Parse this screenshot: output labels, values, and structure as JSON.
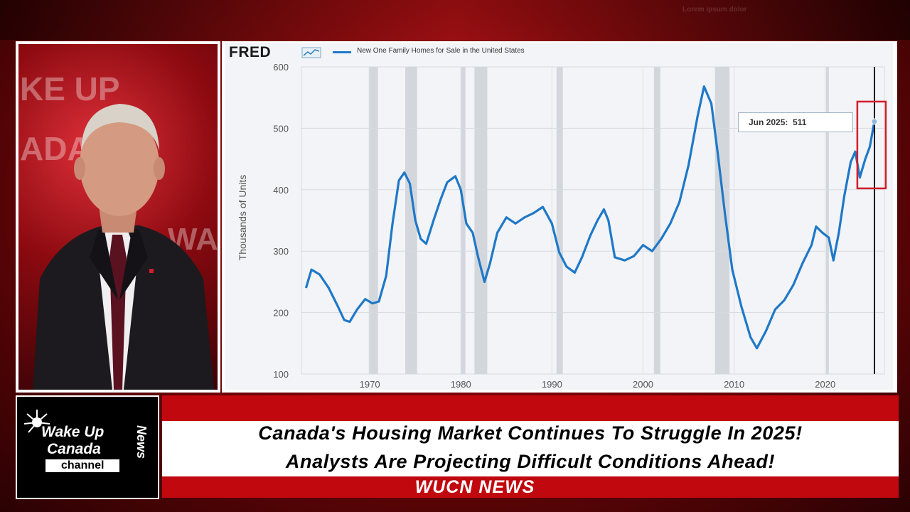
{
  "background": {
    "overlay_text": "Lorem ipsum dolor"
  },
  "presenter": {
    "watermark_lines": [
      "KE UP",
      "ADA",
      "WAK"
    ]
  },
  "chart": {
    "logo": "FRED",
    "legend_label": "New One Family Homes for Sale in the United States",
    "tooltip": "Jun 2025:  511"
  },
  "chart_data": {
    "type": "line",
    "title": "",
    "series": [
      {
        "name": "New One Family Homes for Sale in the United States",
        "color": "#1f78c8",
        "points": [
          [
            1963.0,
            240
          ],
          [
            1963.6,
            270
          ],
          [
            1964.5,
            262
          ],
          [
            1965.5,
            240
          ],
          [
            1966.5,
            210
          ],
          [
            1967.2,
            188
          ],
          [
            1967.8,
            185
          ],
          [
            1968.6,
            205
          ],
          [
            1969.5,
            222
          ],
          [
            1970.3,
            215
          ],
          [
            1971.0,
            218
          ],
          [
            1971.8,
            260
          ],
          [
            1972.5,
            345
          ],
          [
            1973.2,
            415
          ],
          [
            1973.8,
            428
          ],
          [
            1974.4,
            410
          ],
          [
            1975.0,
            350
          ],
          [
            1975.6,
            320
          ],
          [
            1976.2,
            312
          ],
          [
            1977.0,
            350
          ],
          [
            1977.8,
            385
          ],
          [
            1978.5,
            412
          ],
          [
            1979.4,
            422
          ],
          [
            1980.0,
            400
          ],
          [
            1980.6,
            345
          ],
          [
            1981.3,
            330
          ],
          [
            1981.9,
            290
          ],
          [
            1982.6,
            250
          ],
          [
            1983.2,
            280
          ],
          [
            1984.0,
            330
          ],
          [
            1985.0,
            355
          ],
          [
            1986.0,
            345
          ],
          [
            1987.0,
            355
          ],
          [
            1988.0,
            362
          ],
          [
            1989.0,
            372
          ],
          [
            1990.0,
            345
          ],
          [
            1990.8,
            298
          ],
          [
            1991.6,
            275
          ],
          [
            1992.5,
            265
          ],
          [
            1993.3,
            290
          ],
          [
            1994.2,
            325
          ],
          [
            1995.0,
            350
          ],
          [
            1995.7,
            368
          ],
          [
            1996.2,
            350
          ],
          [
            1996.9,
            290
          ],
          [
            1998.0,
            285
          ],
          [
            1999.0,
            292
          ],
          [
            2000.0,
            310
          ],
          [
            2001.0,
            300
          ],
          [
            2002.0,
            320
          ],
          [
            2003.0,
            345
          ],
          [
            2004.0,
            380
          ],
          [
            2005.0,
            440
          ],
          [
            2006.0,
            520
          ],
          [
            2006.7,
            568
          ],
          [
            2007.5,
            540
          ],
          [
            2008.2,
            460
          ],
          [
            2009.0,
            360
          ],
          [
            2009.8,
            270
          ],
          [
            2010.8,
            210
          ],
          [
            2011.8,
            160
          ],
          [
            2012.5,
            142
          ],
          [
            2013.5,
            170
          ],
          [
            2014.5,
            205
          ],
          [
            2015.5,
            220
          ],
          [
            2016.5,
            245
          ],
          [
            2017.5,
            280
          ],
          [
            2018.5,
            310
          ],
          [
            2019.0,
            340
          ],
          [
            2019.7,
            330
          ],
          [
            2020.4,
            322
          ],
          [
            2020.9,
            285
          ],
          [
            2021.5,
            330
          ],
          [
            2022.1,
            390
          ],
          [
            2022.8,
            445
          ],
          [
            2023.3,
            462
          ],
          [
            2023.8,
            420
          ],
          [
            2024.4,
            450
          ],
          [
            2024.9,
            470
          ],
          [
            2025.4,
            511
          ]
        ]
      }
    ],
    "xlim": [
      1962.5,
      2026.5
    ],
    "ylim": [
      100,
      600
    ],
    "yticks": [
      100,
      200,
      300,
      400,
      500,
      600
    ],
    "xticks": [
      1970,
      1980,
      1990,
      2000,
      2010,
      2020
    ],
    "xlabel": "",
    "ylabel": "Thousands of Units",
    "recessions": [
      [
        1969.9,
        1970.9
      ],
      [
        1973.9,
        1975.2
      ],
      [
        1980.0,
        1980.5
      ],
      [
        1981.5,
        1982.9
      ],
      [
        1990.5,
        1991.2
      ],
      [
        2001.2,
        2001.9
      ],
      [
        2007.9,
        2009.5
      ],
      [
        2020.1,
        2020.4
      ]
    ],
    "highlight": {
      "x": 2025.4,
      "y": 511,
      "label": "Jun 2025:  511"
    },
    "grid": true,
    "legend": "top-left"
  },
  "banner": {
    "logo_line1": "Wake Up",
    "logo_line2": "Canada",
    "logo_line3": "channel",
    "logo_vertical": "News",
    "headline_line1": "Canada's Housing Market Continues To Struggle In 2025!",
    "headline_line2": "Analysts Are Projecting Difficult Conditions Ahead!",
    "network_label": "WUCN NEWS"
  }
}
